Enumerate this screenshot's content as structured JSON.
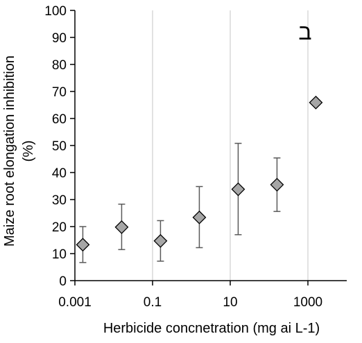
{
  "chart_data": {
    "type": "scatter",
    "title": "",
    "panel_label": "ב",
    "xlabel": "Herbicide concnetration (mg ai L-1)",
    "ylabel_lines": [
      "Maize root elongation inhibition",
      "(%)"
    ],
    "x_scale": "log",
    "xlim": [
      0.001,
      10000
    ],
    "x_ticks": [
      0.001,
      0.1,
      10,
      1000
    ],
    "x_tick_labels": [
      "0.001",
      "0.1",
      "10",
      "1000"
    ],
    "ylim": [
      0,
      100
    ],
    "y_ticks": [
      0,
      10,
      20,
      30,
      40,
      50,
      60,
      70,
      80,
      90,
      100
    ],
    "y_tick_labels": [
      "0",
      "10",
      "20",
      "30",
      "40",
      "50",
      "60",
      "70",
      "80",
      "90",
      "100"
    ],
    "grid": "vertical",
    "legend": "none",
    "marker": "diamond",
    "colors": {
      "marker_fill": "#a6a6a6",
      "marker_stroke": "#000000",
      "error_bar": "#595959",
      "grid": "#d9d9d9",
      "axis": "#000000"
    },
    "series": [
      {
        "points": [
          {
            "x": 0.0016,
            "y": 13.3,
            "err_low": 6.7,
            "err_high": 20.0
          },
          {
            "x": 0.016,
            "y": 19.8,
            "err_low": 11.5,
            "err_high": 28.3
          },
          {
            "x": 0.16,
            "y": 14.7,
            "err_low": 7.2,
            "err_high": 22.2
          },
          {
            "x": 1.6,
            "y": 23.4,
            "err_low": 12.2,
            "err_high": 34.8
          },
          {
            "x": 16,
            "y": 33.8,
            "err_low": 17.0,
            "err_high": 50.8
          },
          {
            "x": 160,
            "y": 35.5,
            "err_low": 25.6,
            "err_high": 45.4
          },
          {
            "x": 1600,
            "y": 65.9,
            "err_low": 65.9,
            "err_high": 65.9
          }
        ]
      }
    ]
  }
}
